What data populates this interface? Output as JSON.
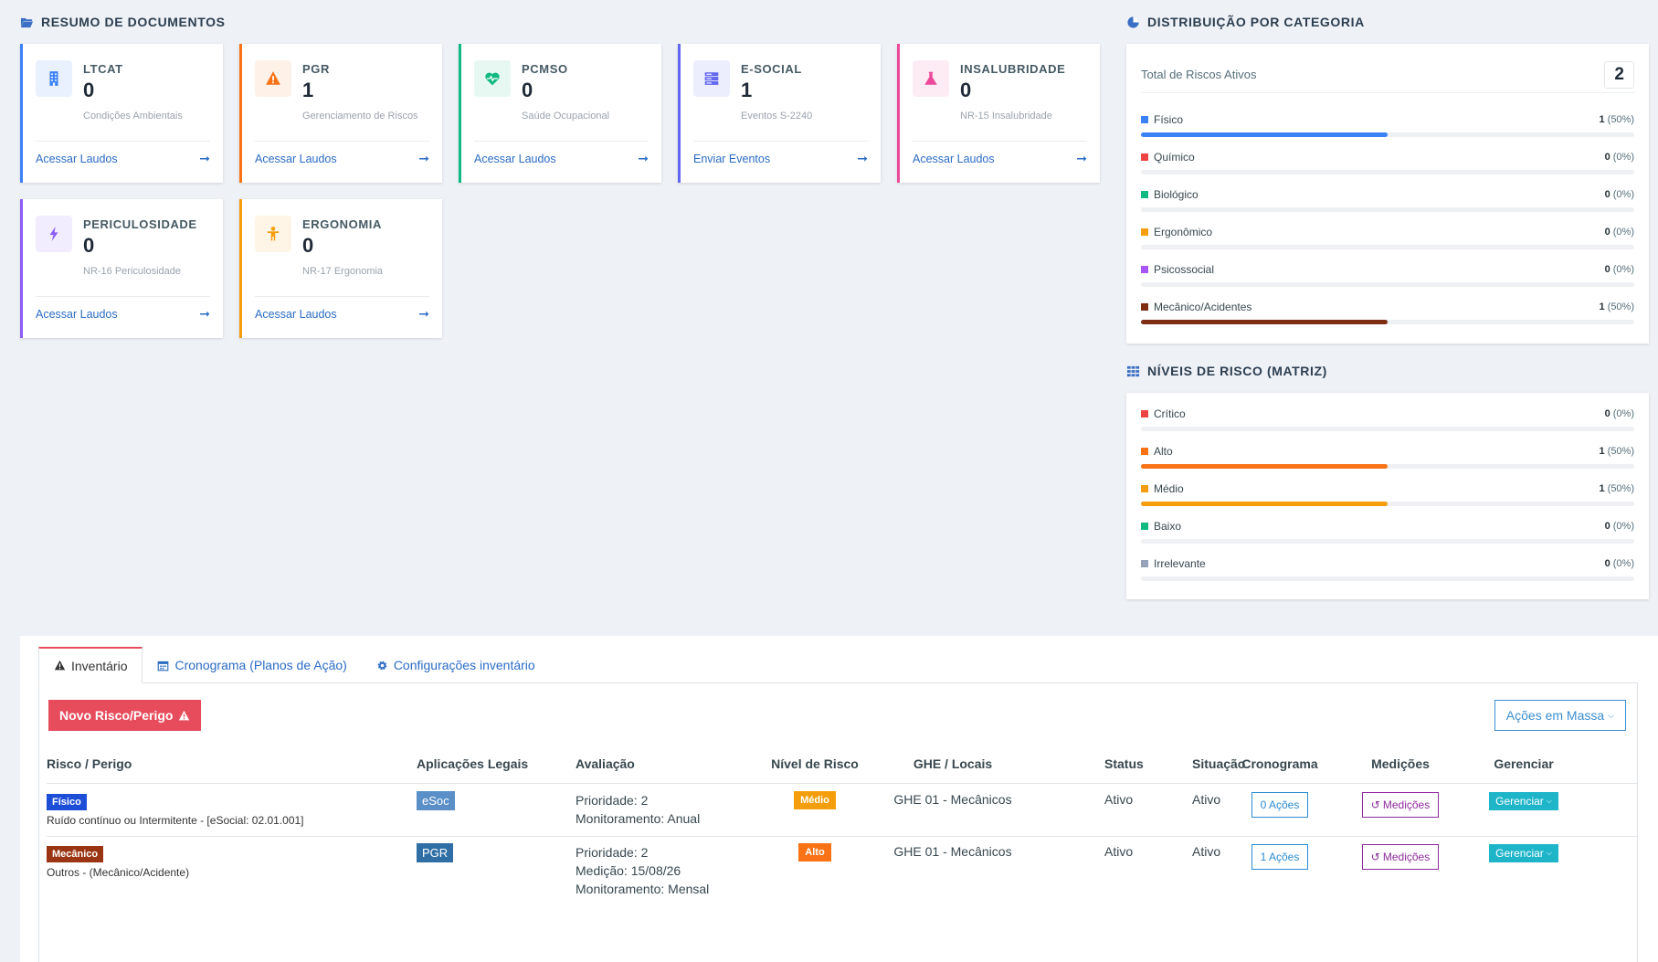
{
  "summary": {
    "title": "RESUMO DE DOCUMENTOS",
    "cards": [
      {
        "title": "LTCAT",
        "value": "0",
        "subtitle": "Condições Ambientais",
        "link": "Acessar Laudos",
        "color": "#3b82f6",
        "bg": "#eaf1fe",
        "icon": "building-icon"
      },
      {
        "title": "PGR",
        "value": "1",
        "subtitle": "Gerenciamento de Riscos",
        "link": "Acessar Laudos",
        "color": "#f97316",
        "bg": "#fef1e7",
        "icon": "warning-icon"
      },
      {
        "title": "PCMSO",
        "value": "0",
        "subtitle": "Saúde Ocupacional",
        "link": "Acessar Laudos",
        "color": "#10b981",
        "bg": "#e6f8f1",
        "icon": "heartbeat-icon"
      },
      {
        "title": "E-SOCIAL",
        "value": "1",
        "subtitle": "Eventos S-2240",
        "link": "Enviar Eventos",
        "color": "#6366f1",
        "bg": "#eceefd",
        "icon": "server-icon"
      },
      {
        "title": "INSALUBRIDADE",
        "value": "0",
        "subtitle": "NR-15 Insalubridade",
        "link": "Acessar Laudos",
        "color": "#ec4899",
        "bg": "#fdecf4",
        "icon": "flask-icon"
      },
      {
        "title": "PERICULOSIDADE",
        "value": "0",
        "subtitle": "NR-16 Periculosidade",
        "link": "Acessar Laudos",
        "color": "#8b5cf6",
        "bg": "#f1ecfe",
        "icon": "bolt-icon"
      },
      {
        "title": "ERGONOMIA",
        "value": "0",
        "subtitle": "NR-17 Ergonomia",
        "link": "Acessar Laudos",
        "color": "#f59e0b",
        "bg": "#fef5e6",
        "icon": "person-icon"
      }
    ]
  },
  "distribution": {
    "title": "DISTRIBUIÇÃO POR CATEGORIA",
    "total_label": "Total de Riscos Ativos",
    "total_value": "2",
    "items": [
      {
        "label": "Físico",
        "count": "1",
        "pct": "(50%)",
        "fraction": 0.5,
        "color": "#3b82f6"
      },
      {
        "label": "Químico",
        "count": "0",
        "pct": "(0%)",
        "fraction": 0,
        "color": "#ef4444"
      },
      {
        "label": "Biológico",
        "count": "0",
        "pct": "(0%)",
        "fraction": 0,
        "color": "#10b981"
      },
      {
        "label": "Ergonômico",
        "count": "0",
        "pct": "(0%)",
        "fraction": 0,
        "color": "#f59e0b"
      },
      {
        "label": "Psicossocial",
        "count": "0",
        "pct": "(0%)",
        "fraction": 0,
        "color": "#a855f7"
      },
      {
        "label": "Mecânico/Acidentes",
        "count": "1",
        "pct": "(50%)",
        "fraction": 0.5,
        "color": "#7c2d12"
      }
    ]
  },
  "levels": {
    "title": "NÍVEIS DE RISCO (MATRIZ)",
    "items": [
      {
        "label": "Crítico",
        "count": "0",
        "pct": "(0%)",
        "fraction": 0,
        "color": "#ef4444"
      },
      {
        "label": "Alto",
        "count": "1",
        "pct": "(50%)",
        "fraction": 0.5,
        "color": "#f97316"
      },
      {
        "label": "Médio",
        "count": "1",
        "pct": "(50%)",
        "fraction": 0.5,
        "color": "#f59e0b"
      },
      {
        "label": "Baixo",
        "count": "0",
        "pct": "(0%)",
        "fraction": 0,
        "color": "#10b981"
      },
      {
        "label": "Irrelevante",
        "count": "0",
        "pct": "(0%)",
        "fraction": 0,
        "color": "#94a3b8"
      }
    ]
  },
  "tabs": [
    {
      "label": "Inventário",
      "icon": "warning-icon"
    },
    {
      "label": "Cronograma (Planos de Ação)",
      "icon": "calendar-icon"
    },
    {
      "label": "Configurações inventário",
      "icon": "gear-icon"
    }
  ],
  "toolbar": {
    "new_label": "Novo Risco/Perigo",
    "mass_label": "Ações em Massa"
  },
  "table": {
    "headers": [
      "Risco / Perigo",
      "Aplicações Legais",
      "Avaliação",
      "Nível de Risco",
      "GHE / Locais",
      "Status",
      "Situação",
      "Cronograma",
      "Medições",
      "Gerenciar"
    ],
    "rows": [
      {
        "tag": "Físico",
        "tag_color": "#1d4ed8",
        "description": "Ruído contínuo ou Intermitente - [eSocial: 02.01.001]",
        "legal": "eSoc",
        "legal_color": "#5b8fc7",
        "eval": [
          "Prioridade: 2",
          "Monitoramento: Anual"
        ],
        "level": "Médio",
        "level_color": "#f59e0b",
        "ghe": "GHE 01 - Mecânicos",
        "status": "Ativo",
        "situation": "Ativo",
        "schedule": "0 Ações",
        "measure": "Medições",
        "manage": "Gerenciar"
      },
      {
        "tag": "Mecânico",
        "tag_color": "#9a3412",
        "description": "Outros - (Mecânico/Acidente)",
        "legal": "PGR",
        "legal_color": "#2f6fa5",
        "eval": [
          "Prioridade: 2",
          "Medição: 15/08/26",
          "Monitoramento: Mensal"
        ],
        "level": "Alto",
        "level_color": "#f97316",
        "ghe": "GHE 01 - Mecânicos",
        "status": "Ativo",
        "situation": "Ativo",
        "schedule": "1 Ações",
        "measure": "Medições",
        "manage": "Gerenciar"
      }
    ]
  }
}
